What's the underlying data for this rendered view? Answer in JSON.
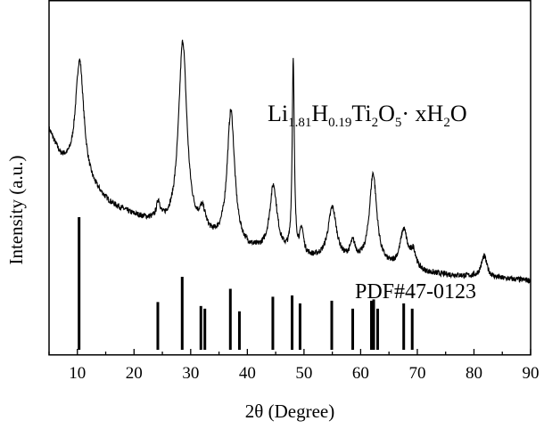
{
  "chart_data": {
    "type": "line",
    "xlabel": "2θ  (Degree)",
    "ylabel": "Intensity (a.u.)",
    "xlim": [
      5,
      90
    ],
    "ylim": [
      0,
      100
    ],
    "y_ticks_shown": false,
    "x_ticks": [
      10,
      20,
      30,
      40,
      50,
      60,
      70,
      80,
      90
    ],
    "grid": false,
    "annotations": {
      "compound": {
        "segments": [
          {
            "text": "Li",
            "sub": false
          },
          {
            "text": "1.81",
            "sub": true
          },
          {
            "text": "H",
            "sub": false
          },
          {
            "text": "0.19",
            "sub": true
          },
          {
            "text": "Ti",
            "sub": false
          },
          {
            "text": "2",
            "sub": true
          },
          {
            "text": "O",
            "sub": false
          },
          {
            "text": "5",
            "sub": true
          },
          {
            "text": "· xH",
            "sub": false
          },
          {
            "text": "2",
            "sub": true
          },
          {
            "text": "O",
            "sub": false
          }
        ]
      },
      "reference": "PDF#47-0123"
    },
    "pattern": {
      "baseline": [
        [
          5,
          63
        ],
        [
          7,
          55
        ],
        [
          9,
          51
        ],
        [
          12,
          47
        ],
        [
          16,
          42
        ],
        [
          20,
          39
        ],
        [
          25,
          36
        ],
        [
          30,
          33
        ],
        [
          35,
          31
        ],
        [
          40,
          29
        ],
        [
          45,
          28
        ],
        [
          50,
          27
        ],
        [
          55,
          26
        ],
        [
          60,
          25
        ],
        [
          65,
          24
        ],
        [
          70,
          23
        ],
        [
          75,
          22.5
        ],
        [
          80,
          22
        ],
        [
          85,
          21.5
        ],
        [
          90,
          21
        ]
      ],
      "peaks": [
        {
          "x": 10.4,
          "height": 34,
          "width": 0.9
        },
        {
          "x": 24.3,
          "height": 5,
          "width": 0.4
        },
        {
          "x": 28.6,
          "height": 54,
          "width": 0.9
        },
        {
          "x": 32.1,
          "height": 6,
          "width": 0.7
        },
        {
          "x": 37.1,
          "height": 38,
          "width": 0.8
        },
        {
          "x": 44.6,
          "height": 19,
          "width": 0.8
        },
        {
          "x": 48.1,
          "height": 55,
          "width": 0.22
        },
        {
          "x": 49.6,
          "height": 7,
          "width": 0.4
        },
        {
          "x": 55.0,
          "height": 15,
          "width": 0.9
        },
        {
          "x": 58.6,
          "height": 5,
          "width": 0.6
        },
        {
          "x": 62.2,
          "height": 26,
          "width": 0.8
        },
        {
          "x": 67.6,
          "height": 11,
          "width": 0.8
        },
        {
          "x": 69.3,
          "height": 5,
          "width": 0.6
        },
        {
          "x": 81.8,
          "height": 6,
          "width": 0.6
        }
      ]
    },
    "reference_lines": [
      {
        "x": 10.3,
        "intensity": 100
      },
      {
        "x": 24.2,
        "intensity": 36
      },
      {
        "x": 28.5,
        "intensity": 55
      },
      {
        "x": 31.8,
        "intensity": 33
      },
      {
        "x": 32.5,
        "intensity": 31
      },
      {
        "x": 37.0,
        "intensity": 46
      },
      {
        "x": 38.6,
        "intensity": 29
      },
      {
        "x": 44.5,
        "intensity": 40
      },
      {
        "x": 47.9,
        "intensity": 41
      },
      {
        "x": 49.3,
        "intensity": 35
      },
      {
        "x": 54.9,
        "intensity": 37
      },
      {
        "x": 58.6,
        "intensity": 31
      },
      {
        "x": 61.9,
        "intensity": 37
      },
      {
        "x": 62.3,
        "intensity": 38
      },
      {
        "x": 63.0,
        "intensity": 31
      },
      {
        "x": 67.6,
        "intensity": 35
      },
      {
        "x": 69.1,
        "intensity": 31
      }
    ]
  }
}
